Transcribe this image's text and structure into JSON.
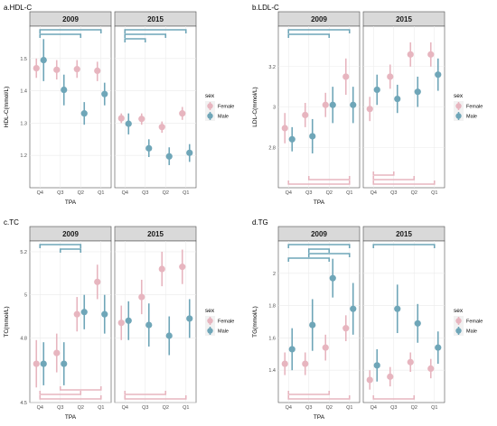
{
  "colors": {
    "female": "#e7b5bf",
    "male": "#6fa6b8",
    "strip": "#d9d9d9",
    "grid": "#ebebeb",
    "panel_border": "#4d4d4d"
  },
  "chart_data": [
    {
      "type": "scatter",
      "title": "a.HDL-C",
      "xlabel": "TPA",
      "ylabel": "HDL-C(mmol/L)",
      "facets": [
        "2009",
        "2015"
      ],
      "categories": [
        "Q4",
        "Q3",
        "Q2",
        "Q1"
      ],
      "ylim": [
        1.1,
        1.6
      ],
      "yticks": [
        1.2,
        1.3,
        1.4,
        1.5
      ],
      "legend": {
        "title": "sex",
        "entries": [
          "Female",
          "Male"
        ],
        "position": "right"
      },
      "series": [
        {
          "name": "Female",
          "color_key": "female",
          "facet_values": {
            "2009": [
              {
                "y": 1.47,
                "lo": 1.44,
                "hi": 1.5
              },
              {
                "y": 1.465,
                "lo": 1.435,
                "hi": 1.495
              },
              {
                "y": 1.467,
                "lo": 1.44,
                "hi": 1.495
              },
              {
                "y": 1.462,
                "lo": 1.43,
                "hi": 1.49
              }
            ],
            "2015": [
              {
                "y": 1.315,
                "lo": 1.3,
                "hi": 1.33
              },
              {
                "y": 1.313,
                "lo": 1.295,
                "hi": 1.33
              },
              {
                "y": 1.288,
                "lo": 1.27,
                "hi": 1.305
              },
              {
                "y": 1.33,
                "lo": 1.31,
                "hi": 1.35
              }
            ]
          }
        },
        {
          "name": "Male",
          "color_key": "male",
          "facet_values": {
            "2009": [
              {
                "y": 1.495,
                "lo": 1.43,
                "hi": 1.56
              },
              {
                "y": 1.403,
                "lo": 1.355,
                "hi": 1.45
              },
              {
                "y": 1.33,
                "lo": 1.295,
                "hi": 1.365
              },
              {
                "y": 1.39,
                "lo": 1.355,
                "hi": 1.425
              }
            ],
            "2015": [
              {
                "y": 1.298,
                "lo": 1.265,
                "hi": 1.33
              },
              {
                "y": 1.222,
                "lo": 1.195,
                "hi": 1.25
              },
              {
                "y": 1.197,
                "lo": 1.17,
                "hi": 1.225
              },
              {
                "y": 1.208,
                "lo": 1.18,
                "hi": 1.235
              }
            ]
          }
        }
      ],
      "brackets": {
        "2009": [
          {
            "from": "Q4",
            "to": "Q2",
            "level": 2,
            "color_key": "male",
            "side": "top"
          },
          {
            "from": "Q4",
            "to": "Q1",
            "level": 1,
            "color_key": "male",
            "side": "top"
          }
        ],
        "2015": [
          {
            "from": "Q4",
            "to": "Q3",
            "level": 3,
            "color_key": "male",
            "side": "top"
          },
          {
            "from": "Q4",
            "to": "Q2",
            "level": 2,
            "color_key": "male",
            "side": "top"
          },
          {
            "from": "Q4",
            "to": "Q1",
            "level": 1,
            "color_key": "male",
            "side": "top"
          }
        ]
      }
    },
    {
      "type": "scatter",
      "title": "b.LDL-C",
      "xlabel": "TPA",
      "ylabel": "LDL-C(mmol/L)",
      "facets": [
        "2009",
        "2015"
      ],
      "categories": [
        "Q4",
        "Q3",
        "Q2",
        "Q1"
      ],
      "ylim": [
        2.6,
        3.4
      ],
      "yticks": [
        2.8,
        3.0,
        3.2
      ],
      "legend": {
        "title": "sex",
        "entries": [
          "Female",
          "Male"
        ],
        "position": "right"
      },
      "series": [
        {
          "name": "Female",
          "color_key": "female",
          "facet_values": {
            "2009": [
              {
                "y": 2.895,
                "lo": 2.82,
                "hi": 2.97
              },
              {
                "y": 2.96,
                "lo": 2.9,
                "hi": 3.02
              },
              {
                "y": 3.01,
                "lo": 2.95,
                "hi": 3.07
              },
              {
                "y": 3.15,
                "lo": 3.06,
                "hi": 3.24
              }
            ],
            "2015": [
              {
                "y": 2.99,
                "lo": 2.93,
                "hi": 3.05
              },
              {
                "y": 3.15,
                "lo": 3.09,
                "hi": 3.21
              },
              {
                "y": 3.26,
                "lo": 3.2,
                "hi": 3.32
              },
              {
                "y": 3.26,
                "lo": 3.2,
                "hi": 3.32
              }
            ]
          }
        },
        {
          "name": "Male",
          "color_key": "male",
          "facet_values": {
            "2009": [
              {
                "y": 2.84,
                "lo": 2.78,
                "hi": 2.9
              },
              {
                "y": 2.855,
                "lo": 2.77,
                "hi": 2.94
              },
              {
                "y": 3.01,
                "lo": 2.92,
                "hi": 3.1
              },
              {
                "y": 3.01,
                "lo": 2.92,
                "hi": 3.1
              }
            ],
            "2015": [
              {
                "y": 3.085,
                "lo": 3.01,
                "hi": 3.16
              },
              {
                "y": 3.04,
                "lo": 2.97,
                "hi": 3.11
              },
              {
                "y": 3.075,
                "lo": 3.0,
                "hi": 3.15
              },
              {
                "y": 3.16,
                "lo": 3.08,
                "hi": 3.24
              }
            ]
          }
        }
      ],
      "brackets": {
        "2009": [
          {
            "from": "Q4",
            "to": "Q2",
            "level": 2,
            "color_key": "male",
            "side": "top"
          },
          {
            "from": "Q4",
            "to": "Q1",
            "level": 1,
            "color_key": "male",
            "side": "top"
          },
          {
            "from": "Q4",
            "to": "Q1",
            "level": 1,
            "color_key": "female",
            "side": "bottom"
          },
          {
            "from": "Q3",
            "to": "Q1",
            "level": 2,
            "color_key": "female",
            "side": "bottom"
          }
        ],
        "2015": [
          {
            "from": "Q4",
            "to": "Q1",
            "level": 1,
            "color_key": "female",
            "side": "bottom"
          },
          {
            "from": "Q4",
            "to": "Q2",
            "level": 2,
            "color_key": "female",
            "side": "bottom"
          },
          {
            "from": "Q4",
            "to": "Q3",
            "level": 3,
            "color_key": "female",
            "side": "bottom"
          }
        ]
      }
    },
    {
      "type": "scatter",
      "title": "c.TC",
      "xlabel": "TPA",
      "ylabel": "TC(mmol/L)",
      "facets": [
        "2009",
        "2015"
      ],
      "categories": [
        "Q4",
        "Q3",
        "Q2",
        "Q1"
      ],
      "ylim": [
        4.5,
        5.25
      ],
      "yticks": [
        4.5,
        4.8,
        5.0,
        5.2
      ],
      "legend": {
        "title": "sex",
        "entries": [
          "Female",
          "Male"
        ],
        "position": "right"
      },
      "series": [
        {
          "name": "Female",
          "color_key": "female",
          "facet_values": {
            "2009": [
              {
                "y": 4.68,
                "lo": 4.57,
                "hi": 4.79
              },
              {
                "y": 4.73,
                "lo": 4.64,
                "hi": 4.82
              },
              {
                "y": 4.91,
                "lo": 4.83,
                "hi": 4.99
              },
              {
                "y": 5.06,
                "lo": 4.98,
                "hi": 5.14
              }
            ],
            "2015": [
              {
                "y": 4.87,
                "lo": 4.79,
                "hi": 4.95
              },
              {
                "y": 4.99,
                "lo": 4.91,
                "hi": 5.07
              },
              {
                "y": 5.12,
                "lo": 5.04,
                "hi": 5.2
              },
              {
                "y": 5.13,
                "lo": 5.05,
                "hi": 5.21
              }
            ]
          }
        },
        {
          "name": "Male",
          "color_key": "male",
          "facet_values": {
            "2009": [
              {
                "y": 4.68,
                "lo": 4.58,
                "hi": 4.78
              },
              {
                "y": 4.68,
                "lo": 4.58,
                "hi": 4.78
              },
              {
                "y": 4.92,
                "lo": 4.84,
                "hi": 5.0
              },
              {
                "y": 4.91,
                "lo": 4.82,
                "hi": 5.0
              }
            ],
            "2015": [
              {
                "y": 4.88,
                "lo": 4.79,
                "hi": 4.97
              },
              {
                "y": 4.86,
                "lo": 4.76,
                "hi": 4.96
              },
              {
                "y": 4.81,
                "lo": 4.72,
                "hi": 4.9
              },
              {
                "y": 4.89,
                "lo": 4.8,
                "hi": 4.98
              }
            ]
          }
        }
      ],
      "brackets": {
        "2009": [
          {
            "from": "Q4",
            "to": "Q2",
            "level": 1,
            "color_key": "male",
            "side": "top"
          },
          {
            "from": "Q3",
            "to": "Q2",
            "level": 2,
            "color_key": "male",
            "side": "top"
          },
          {
            "from": "Q4",
            "to": "Q1",
            "level": 1,
            "color_key": "female",
            "side": "bottom"
          },
          {
            "from": "Q4",
            "to": "Q2",
            "level": 2,
            "color_key": "female",
            "side": "bottom"
          },
          {
            "from": "Q3",
            "to": "Q1",
            "level": 3,
            "color_key": "female",
            "side": "bottom"
          }
        ],
        "2015": [
          {
            "from": "Q4",
            "to": "Q1",
            "level": 1,
            "color_key": "female",
            "side": "bottom"
          },
          {
            "from": "Q4",
            "to": "Q2",
            "level": 2,
            "color_key": "female",
            "side": "bottom"
          }
        ]
      }
    },
    {
      "type": "scatter",
      "title": "d.TG",
      "xlabel": "TPA",
      "ylabel": "TG(mmol/L)",
      "facets": [
        "2009",
        "2015"
      ],
      "categories": [
        "Q4",
        "Q3",
        "Q2",
        "Q1"
      ],
      "ylim": [
        1.2,
        2.2
      ],
      "yticks": [
        1.4,
        1.6,
        1.8,
        2.0
      ],
      "legend": {
        "title": "sex",
        "entries": [
          "Female",
          "Male"
        ],
        "position": "right"
      },
      "series": [
        {
          "name": "Female",
          "color_key": "female",
          "facet_values": {
            "2009": [
              {
                "y": 1.44,
                "lo": 1.37,
                "hi": 1.51
              },
              {
                "y": 1.44,
                "lo": 1.37,
                "hi": 1.51
              },
              {
                "y": 1.54,
                "lo": 1.46,
                "hi": 1.62
              },
              {
                "y": 1.66,
                "lo": 1.58,
                "hi": 1.74
              }
            ],
            "2015": [
              {
                "y": 1.34,
                "lo": 1.28,
                "hi": 1.4
              },
              {
                "y": 1.36,
                "lo": 1.3,
                "hi": 1.42
              },
              {
                "y": 1.45,
                "lo": 1.39,
                "hi": 1.51
              },
              {
                "y": 1.41,
                "lo": 1.35,
                "hi": 1.47
              }
            ]
          }
        },
        {
          "name": "Male",
          "color_key": "male",
          "facet_values": {
            "2009": [
              {
                "y": 1.53,
                "lo": 1.4,
                "hi": 1.66
              },
              {
                "y": 1.68,
                "lo": 1.52,
                "hi": 1.84
              },
              {
                "y": 1.97,
                "lo": 1.85,
                "hi": 2.09
              },
              {
                "y": 1.78,
                "lo": 1.62,
                "hi": 1.94
              }
            ],
            "2015": [
              {
                "y": 1.43,
                "lo": 1.33,
                "hi": 1.53
              },
              {
                "y": 1.78,
                "lo": 1.63,
                "hi": 1.93
              },
              {
                "y": 1.69,
                "lo": 1.57,
                "hi": 1.81
              },
              {
                "y": 1.54,
                "lo": 1.44,
                "hi": 1.64
              }
            ]
          }
        }
      ],
      "brackets": {
        "2009": [
          {
            "from": "Q4",
            "to": "Q1",
            "level": 1,
            "color_key": "male",
            "side": "top"
          },
          {
            "from": "Q3",
            "to": "Q2",
            "level": 2,
            "color_key": "male",
            "side": "top"
          },
          {
            "from": "Q3",
            "to": "Q1",
            "level": 3,
            "color_key": "male",
            "side": "top"
          },
          {
            "from": "Q4",
            "to": "Q2",
            "level": 4,
            "color_key": "male",
            "side": "top"
          },
          {
            "from": "Q4",
            "to": "Q1",
            "level": 1,
            "color_key": "female",
            "side": "bottom"
          },
          {
            "from": "Q4",
            "to": "Q2",
            "level": 2,
            "color_key": "female",
            "side": "bottom"
          }
        ],
        "2015": [
          {
            "from": "Q4",
            "to": "Q1",
            "level": 1,
            "color_key": "male",
            "side": "top"
          },
          {
            "from": "Q4",
            "to": "Q2",
            "level": 1,
            "color_key": "female",
            "side": "bottom"
          }
        ]
      }
    }
  ]
}
